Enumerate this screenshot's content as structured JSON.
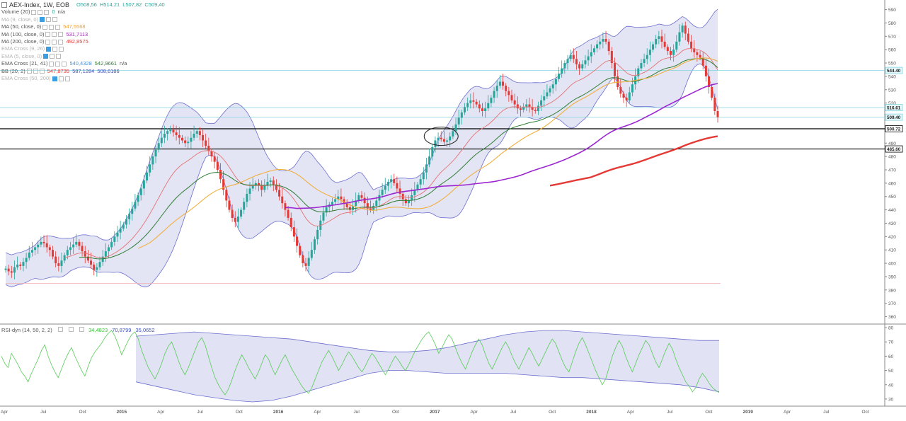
{
  "header": {
    "symbol": "AEX-Index, 1W, EOB",
    "open": "O508,56",
    "high": "H514,21",
    "low": "L507,82",
    "close": "C509,40"
  },
  "legend": [
    {
      "label": "Volume (20)",
      "values": [
        "0",
        "n/a"
      ],
      "colors": [
        "#26a69a",
        "#555555"
      ],
      "dim": false
    },
    {
      "label": "MA (9, close, 0)",
      "values": [],
      "colors": [],
      "dim": true
    },
    {
      "label": "MA (50, close, 0)",
      "values": [
        "547,5568"
      ],
      "colors": [
        "#f0a030"
      ],
      "dim": false
    },
    {
      "label": "MA (100, close, 0)",
      "values": [
        "531,7113"
      ],
      "colors": [
        "#9c27b0"
      ],
      "dim": false
    },
    {
      "label": "MA (200, close, 0)",
      "values": [
        "492,8575"
      ],
      "colors": [
        "#e53935"
      ],
      "dim": false
    },
    {
      "label": "EMA Cross (9, 26)",
      "values": [],
      "colors": [],
      "dim": true
    },
    {
      "label": "EMA (5, close, 0)",
      "values": [],
      "colors": [],
      "dim": true
    },
    {
      "label": "EMA Cross (21, 41)",
      "values": [
        "540,4328",
        "542,9661",
        "n/a"
      ],
      "colors": [
        "#4a90d9",
        "#2e7d32",
        "#555555"
      ],
      "dim": false
    },
    {
      "label": "BB (20, 2)",
      "values": [
        "547,8735",
        "587,1284",
        "508,6186"
      ],
      "colors": [
        "#e53935",
        "#3f51b5",
        "#3f51b5"
      ],
      "dim": false
    },
    {
      "label": "EMA Cross (50, 200)",
      "values": [],
      "colors": [],
      "dim": true
    }
  ],
  "rsi_legend": {
    "label": "RSI-dyn (14, 50, 2, 2)",
    "values": [
      "34,4823",
      "70,8799",
      "35,0652"
    ],
    "colors": [
      "#3cbf3c",
      "#3f51b5",
      "#3f51b5"
    ]
  },
  "colors": {
    "up": "#26a69a",
    "down": "#e53935",
    "bb_fill": "#d9dbf0",
    "bb_line": "#6c6fcf",
    "ma50": "#f0b040",
    "ma100": "#9c27d0",
    "ma200": "#e53935",
    "ema21": "#e57373",
    "ema41": "#2e7d32",
    "rsi_line": "#55cc55",
    "level_line": "#000000",
    "cyan_line": "#80d4e0",
    "axis_text": "#555555"
  },
  "chart_data": [
    {
      "type": "candlestick",
      "title": "AEX-Index, 1W, EOB",
      "y_ticks": [
        590,
        580,
        570,
        560,
        550,
        540,
        530,
        520,
        510,
        500,
        490,
        480,
        470,
        460,
        450,
        440,
        430,
        420,
        410,
        400,
        390,
        380,
        370,
        360
      ],
      "ylim": [
        355,
        594
      ],
      "x_labels": [
        "Apr",
        "Jul",
        "Oct",
        "2015",
        "Apr",
        "Jul",
        "Oct",
        "2016",
        "Apr",
        "Jul",
        "Oct",
        "2017",
        "Apr",
        "Jul",
        "Oct",
        "2018",
        "Apr",
        "Jul",
        "Oct",
        "2019",
        "Apr",
        "Jul",
        "Oct"
      ],
      "price_labels": [
        {
          "text": "544.40",
          "value": 544.4
        },
        {
          "text": "516.61",
          "value": 516.61
        },
        {
          "text": "509.40",
          "value": 509.4
        },
        {
          "text": "500.72",
          "value": 500.72
        },
        {
          "text": "485.60",
          "value": 485.6
        }
      ],
      "horizontal_levels": [
        500.72,
        485.6
      ],
      "close_series": [
        396,
        394,
        393,
        397,
        399,
        398,
        401,
        404,
        408,
        410,
        412,
        414,
        416,
        415,
        412,
        410,
        405,
        400,
        398,
        402,
        406,
        410,
        412,
        414,
        416,
        413,
        409,
        405,
        402,
        399,
        395,
        397,
        401,
        405,
        409,
        412,
        416,
        420,
        423,
        426,
        429,
        433,
        437,
        441,
        446,
        451,
        456,
        462,
        468,
        474,
        480,
        485,
        490,
        494,
        497,
        499,
        500,
        498,
        496,
        494,
        492,
        490,
        491,
        494,
        497,
        499,
        496,
        492,
        488,
        484,
        480,
        476,
        470,
        463,
        455,
        447,
        440,
        434,
        431,
        435,
        440,
        446,
        452,
        456,
        458,
        460,
        458,
        455,
        458,
        461,
        462,
        459,
        455,
        450,
        445,
        440,
        434,
        427,
        420,
        413,
        406,
        400,
        398,
        404,
        410,
        418,
        425,
        432,
        438,
        442,
        444,
        446,
        448,
        450,
        448,
        445,
        442,
        440,
        443,
        447,
        451,
        449,
        445,
        441,
        440,
        443,
        447,
        451,
        455,
        458,
        461,
        463,
        460,
        456,
        452,
        448,
        445,
        447,
        451,
        455,
        459,
        463,
        468,
        474,
        480,
        487,
        492,
        494,
        493,
        491,
        492,
        495,
        499,
        504,
        509,
        513,
        517,
        520,
        522,
        521,
        519,
        516,
        514,
        516,
        520,
        524,
        529,
        533,
        536,
        533,
        529,
        526,
        522,
        519,
        516,
        515,
        517,
        519,
        517,
        515,
        514,
        518,
        522,
        525,
        528,
        531,
        534,
        538,
        542,
        546,
        550,
        553,
        556,
        553,
        549,
        546,
        549,
        552,
        555,
        558,
        561,
        564,
        566,
        568,
        566,
        559,
        550,
        540,
        532,
        527,
        524,
        522,
        528,
        534,
        540,
        546,
        550,
        553,
        556,
        560,
        564,
        568,
        570,
        566,
        562,
        559,
        556,
        560,
        566,
        573,
        578,
        572,
        566,
        561,
        558,
        556,
        554,
        548,
        540,
        532,
        524,
        514,
        509.4
      ]
    },
    {
      "type": "line",
      "title": "RSI-dyn (14, 50, 2, 2)",
      "y_ticks": [
        80,
        70,
        60,
        50,
        40,
        30
      ],
      "ylim": [
        26,
        82
      ],
      "series": [
        {
          "name": "34,4823",
          "values": [
            60,
            55,
            52,
            62,
            58,
            54,
            49,
            46,
            42,
            48,
            53,
            58,
            64,
            68,
            60,
            54,
            49,
            45,
            51,
            57,
            62,
            66,
            60,
            55,
            50,
            46,
            53,
            59,
            63,
            66,
            69,
            73,
            76,
            78,
            74,
            68,
            61,
            66,
            71,
            75,
            77,
            72,
            64,
            58,
            52,
            48,
            44,
            49,
            55,
            62,
            67,
            70,
            64,
            57,
            51,
            47,
            52,
            58,
            64,
            70,
            73,
            68,
            60,
            52,
            45,
            40,
            36,
            33,
            37,
            43,
            50,
            56,
            61,
            57,
            52,
            48,
            44,
            49,
            55,
            61,
            58,
            52,
            47,
            52,
            57,
            61,
            56,
            51,
            47,
            43,
            39,
            36,
            34,
            38,
            44,
            50,
            56,
            60,
            64,
            60,
            55,
            50,
            54,
            59,
            63,
            60,
            56,
            52,
            49,
            53,
            58,
            62,
            59,
            55,
            51,
            47,
            51,
            56,
            60,
            57,
            53,
            50,
            54,
            59,
            64,
            68,
            72,
            75,
            77,
            73,
            68,
            62,
            66,
            71,
            75,
            72,
            66,
            60,
            55,
            51,
            57,
            63,
            68,
            72,
            68,
            61,
            55,
            51,
            56,
            61,
            66,
            70,
            66,
            60,
            55,
            51,
            56,
            61,
            66,
            62,
            57,
            53,
            58,
            63,
            68,
            72,
            69,
            63,
            57,
            52,
            49,
            56,
            63,
            69,
            73,
            68,
            62,
            56,
            50,
            45,
            40,
            44,
            52,
            60,
            66,
            71,
            67,
            60,
            54,
            49,
            55,
            61,
            66,
            71,
            68,
            62,
            56,
            52,
            58,
            64,
            69,
            65,
            58,
            52,
            47,
            42,
            39,
            35,
            38,
            44,
            48,
            45,
            41,
            38,
            36,
            34.4823
          ]
        },
        {
          "name": "70,8799",
          "values": [
            74,
            75,
            76,
            77,
            76,
            75,
            74,
            73,
            72,
            70,
            68,
            66,
            64,
            63,
            63,
            64,
            66,
            69,
            72,
            75,
            77,
            78,
            78,
            77,
            76,
            75,
            74,
            73,
            72,
            71,
            71
          ]
        },
        {
          "name": "35,0652",
          "values": [
            42,
            39,
            36,
            33,
            31,
            29,
            28,
            29,
            32,
            36,
            40,
            44,
            48,
            50,
            50,
            49,
            48,
            48,
            48,
            48,
            47,
            46,
            45,
            45,
            44,
            43,
            42,
            41,
            40,
            38,
            35
          ]
        }
      ]
    }
  ]
}
